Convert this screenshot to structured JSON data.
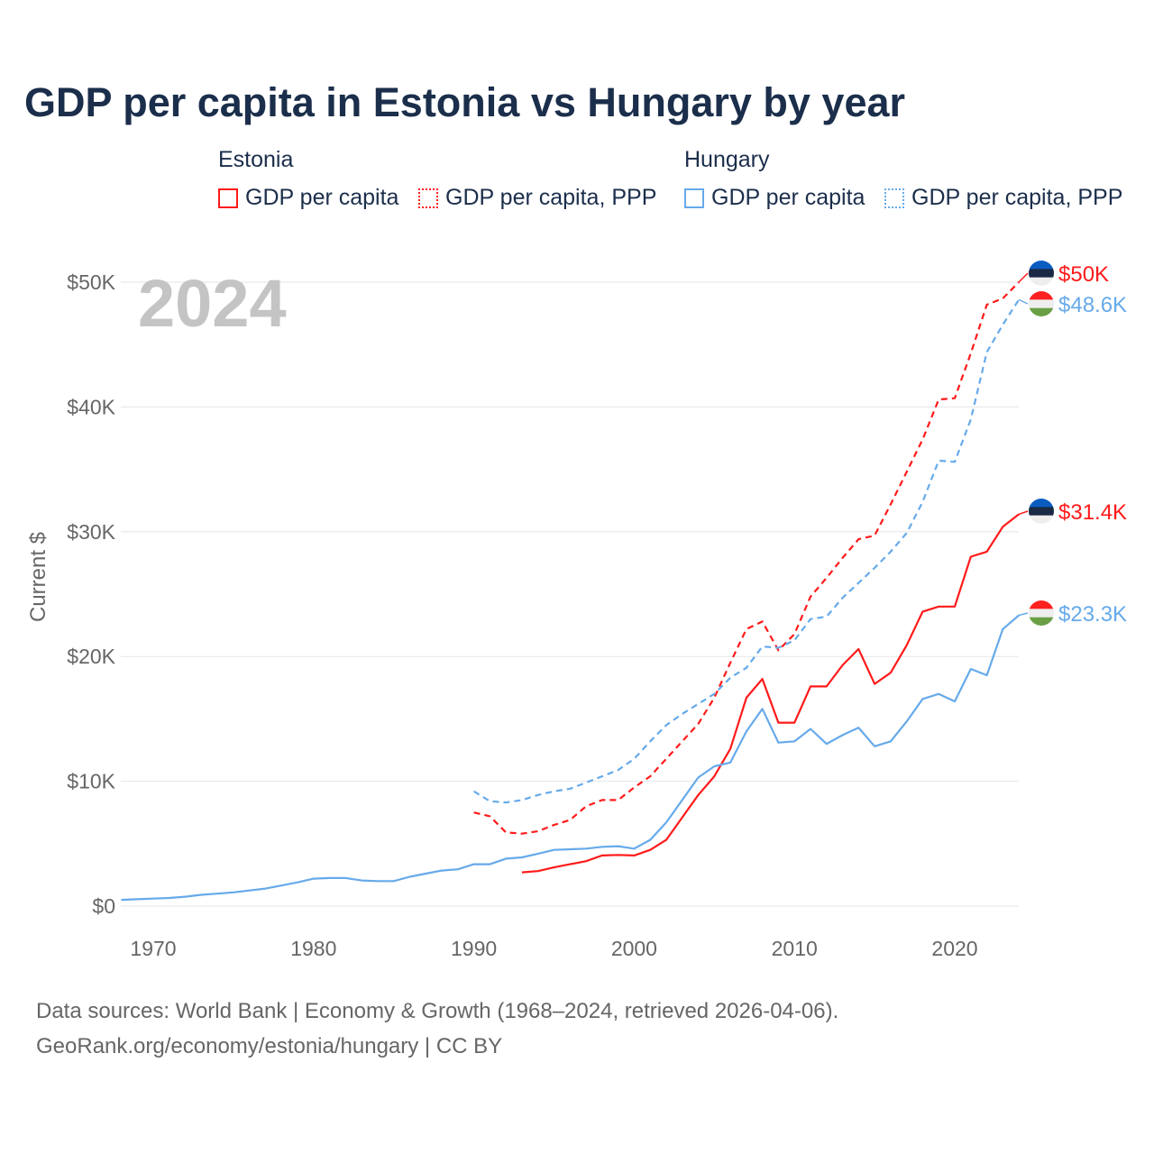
{
  "title": "GDP per capita in Estonia vs Hungary by year",
  "legend": {
    "groups": [
      {
        "name": "Estonia",
        "items": [
          "GDP per capita",
          "GDP per capita, PPP"
        ]
      },
      {
        "name": "Hungary",
        "items": [
          "GDP per capita",
          "GDP per capita, PPP"
        ]
      }
    ]
  },
  "footer": {
    "line1": "Data sources: World Bank | Economy & Growth (1968–2024, retrieved 2026-04-06).",
    "line2": "GeoRank.org/economy/estonia/hungary | CC BY"
  },
  "colors": {
    "estonia": "#ff1a1a",
    "hungary": "#66aaea",
    "title": "#1b2e4b",
    "year_watermark": "#c4c4c4"
  },
  "chart_data": {
    "type": "line",
    "title": "GDP per capita in Estonia vs Hungary by year",
    "ylabel": "Current $",
    "xlabel": "",
    "watermark_year": "2024",
    "xlim": [
      1968,
      2024
    ],
    "ylim": [
      0,
      52
    ],
    "unit": "thousand USD",
    "x_ticks": [
      1970,
      1980,
      1990,
      2000,
      2010,
      2020
    ],
    "y_ticks": [
      {
        "v": 0,
        "label": "$0"
      },
      {
        "v": 10,
        "label": "$10K"
      },
      {
        "v": 20,
        "label": "$20K"
      },
      {
        "v": 30,
        "label": "$30K"
      },
      {
        "v": 40,
        "label": "$40K"
      },
      {
        "v": 50,
        "label": "$50K"
      }
    ],
    "grid": true,
    "series": [
      {
        "name": "Estonia GDP per capita",
        "country": "estonia",
        "dashed": false,
        "start": 1993,
        "end_label": "$31.4K",
        "values": [
          2.7,
          2.8,
          3.1,
          3.35,
          3.6,
          4.05,
          4.1,
          4.05,
          4.5,
          5.3,
          7.1,
          8.9,
          10.4,
          12.6,
          16.7,
          18.2,
          14.7,
          14.7,
          17.6,
          17.6,
          19.3,
          20.6,
          17.8,
          18.7,
          20.9,
          23.6,
          24.0,
          24.0,
          28.0,
          28.4,
          30.4,
          31.4
        ]
      },
      {
        "name": "Estonia GDP per capita, PPP",
        "country": "estonia",
        "dashed": true,
        "start": 1990,
        "end_label": "$50K",
        "values": [
          7.5,
          7.2,
          5.9,
          5.8,
          6.0,
          6.5,
          6.9,
          8.0,
          8.5,
          8.5,
          9.5,
          10.4,
          11.8,
          13.2,
          14.6,
          16.7,
          19.5,
          22.2,
          22.8,
          20.5,
          21.8,
          24.8,
          26.3,
          27.9,
          29.4,
          29.7,
          32.2,
          34.8,
          37.4,
          40.6,
          40.7,
          44.3,
          48.2,
          48.7,
          50.0
        ]
      },
      {
        "name": "Hungary GDP per capita",
        "country": "hungary",
        "dashed": false,
        "start": 1968,
        "end_label": "$23.3K",
        "values": [
          0.5,
          0.55,
          0.6,
          0.65,
          0.75,
          0.9,
          1.0,
          1.1,
          1.25,
          1.4,
          1.65,
          1.9,
          2.2,
          2.25,
          2.25,
          2.05,
          2.0,
          2.0,
          2.35,
          2.6,
          2.85,
          2.95,
          3.35,
          3.35,
          3.8,
          3.9,
          4.2,
          4.5,
          4.55,
          4.6,
          4.75,
          4.8,
          4.6,
          5.3,
          6.7,
          8.5,
          10.3,
          11.2,
          11.5,
          14.0,
          15.8,
          13.1,
          13.2,
          14.2,
          13.0,
          13.7,
          14.3,
          12.8,
          13.2,
          14.8,
          16.6,
          17.0,
          16.4,
          19.0,
          18.5,
          22.2,
          23.3
        ]
      },
      {
        "name": "Hungary GDP per capita, PPP",
        "country": "hungary",
        "dashed": true,
        "start": 1990,
        "end_label": "$48.6K",
        "values": [
          9.2,
          8.4,
          8.3,
          8.5,
          8.9,
          9.2,
          9.4,
          9.9,
          10.4,
          10.9,
          11.8,
          13.2,
          14.5,
          15.4,
          16.2,
          17.0,
          18.3,
          19.1,
          20.8,
          20.7,
          21.3,
          23.0,
          23.2,
          24.7,
          25.9,
          27.1,
          28.4,
          29.9,
          32.4,
          35.7,
          35.6,
          39.0,
          44.4,
          46.6,
          48.6
        ]
      }
    ]
  }
}
